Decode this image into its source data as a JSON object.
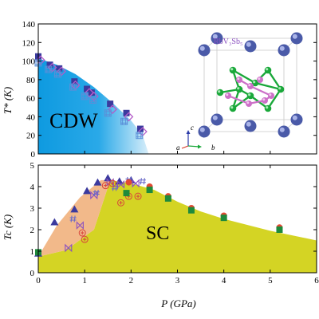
{
  "chart_data": [
    {
      "type": "scatter",
      "region_label": "CDW",
      "inset_label": "RbV₃Sb₅",
      "inset_axes": {
        "c": "c",
        "a": "a",
        "b": "b"
      },
      "ylabel": "T* (K)",
      "xlim": [
        0,
        6
      ],
      "ylim": [
        0,
        140
      ],
      "yticks": [
        0,
        20,
        40,
        60,
        80,
        100,
        120,
        140
      ],
      "series": [
        {
          "marker": "square",
          "color": "#3b3a9e",
          "x": [
            0.0,
            0.25,
            0.45,
            0.78,
            1.05,
            1.15,
            1.55,
            1.9,
            2.2
          ],
          "y": [
            105,
            96,
            92,
            78,
            70,
            66,
            54,
            44,
            27
          ]
        },
        {
          "marker": "diamond",
          "color": "#b35cc8",
          "x": [
            0.05,
            0.3,
            0.5,
            0.8,
            1.1,
            1.2,
            1.6,
            1.95,
            2.25
          ],
          "y": [
            101,
            93,
            89,
            74,
            66,
            62,
            48,
            40,
            24
          ]
        },
        {
          "marker": "square-hash",
          "color": "#5a8fd8",
          "x": [
            0.0,
            0.22,
            0.42,
            0.75,
            1.0,
            1.18,
            1.5,
            1.85,
            2.18
          ],
          "y": [
            98,
            91,
            86,
            72,
            62,
            58,
            44,
            35,
            20
          ]
        }
      ]
    },
    {
      "type": "scatter",
      "region_label": "SC",
      "xlabel": "P (GPa)",
      "ylabel": "Tc (K)",
      "xlim": [
        0,
        6
      ],
      "ylim": [
        0,
        5
      ],
      "xticks": [
        0,
        1,
        2,
        3,
        4,
        5,
        6
      ],
      "yticks": [
        0,
        1,
        2,
        3,
        4,
        5
      ],
      "series": [
        {
          "marker": "triangle",
          "color": "#3b3a9e",
          "x": [
            0.0,
            0.35,
            0.78,
            1.05,
            1.28,
            1.5,
            1.75,
            2.0
          ],
          "y": [
            0.9,
            2.35,
            2.95,
            3.8,
            4.2,
            4.4,
            4.25,
            4.3
          ]
        },
        {
          "marker": "bowtie",
          "color": "#8a4fc0",
          "x": [
            0.65,
            0.9,
            1.2,
            1.55,
            1.78,
            2.1
          ],
          "y": [
            1.15,
            2.2,
            3.6,
            4.2,
            4.1,
            4.15
          ]
        },
        {
          "marker": "hash",
          "color": "#6a6ac8",
          "x": [
            0.75,
            1.25,
            1.65,
            1.95,
            2.25
          ],
          "y": [
            2.5,
            3.7,
            3.95,
            4.3,
            4.25
          ]
        },
        {
          "marker": "circle-plus",
          "color": "#d8453a",
          "x": [
            0.95,
            1.0,
            1.45,
            1.6,
            1.78,
            1.95,
            2.15
          ],
          "y": [
            1.85,
            1.55,
            4.05,
            4.15,
            3.25,
            3.55,
            3.55
          ]
        },
        {
          "marker": "circle",
          "color": "#e24a33",
          "x": [
            1.95,
            2.4,
            2.8,
            3.3,
            4.0,
            5.2
          ],
          "y": [
            4.2,
            4.0,
            3.55,
            3.0,
            2.65,
            2.1
          ]
        },
        {
          "marker": "square",
          "color": "#1f8a3c",
          "x": [
            0.0,
            1.9,
            2.4,
            2.8,
            3.3,
            4.0,
            5.2
          ],
          "y": [
            0.95,
            3.7,
            3.85,
            3.45,
            2.9,
            2.55,
            2.0
          ]
        }
      ]
    }
  ]
}
